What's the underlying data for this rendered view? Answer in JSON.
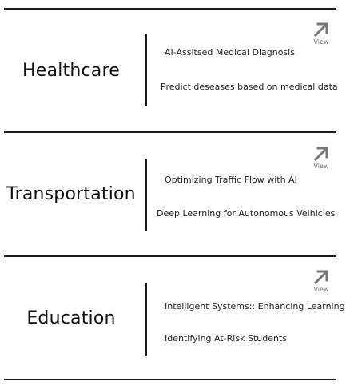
{
  "sections": [
    {
      "category": "Healthcare",
      "view_label": "View",
      "items": [
        "AI-Assitsed Medical Diagnosis",
        "Predict deseases based on medical data"
      ]
    },
    {
      "category": "Transportation",
      "view_label": "View",
      "items": [
        "Optimizing Traffic Flow with AI",
        "Deep Learning for Autonomous Veihicles"
      ]
    },
    {
      "category": "Education",
      "view_label": "View",
      "items": [
        "Intelligent Systems:: Enhancing Learning",
        "Identifying At-Risk Students"
      ]
    }
  ],
  "icons": {
    "view": "arrow-up-right-icon"
  },
  "colors": {
    "rule": "#1a1a1a",
    "icon": "#777777"
  }
}
